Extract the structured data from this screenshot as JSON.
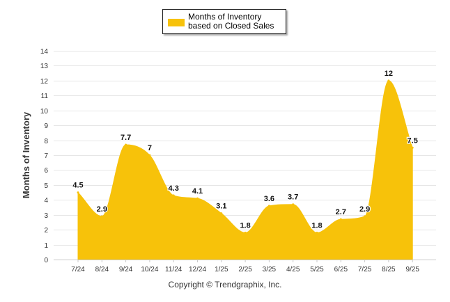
{
  "legend": {
    "label": "Months of Inventory based on Closed Sales"
  },
  "copyright": "Copyright © Trendgraphix, Inc.",
  "colors": {
    "fill": "#f7c20a",
    "grid": "#e6e6e6",
    "axis_text": "#333333"
  },
  "chart_data": {
    "type": "area",
    "title": "",
    "xlabel": "",
    "ylabel": "Months of Inventory",
    "categories": [
      "7/24",
      "8/24",
      "9/24",
      "10/24",
      "11/24",
      "12/24",
      "1/25",
      "2/25",
      "3/25",
      "4/25",
      "5/25",
      "6/25",
      "7/25",
      "8/25",
      "9/25"
    ],
    "series": [
      {
        "name": "Months of Inventory based on Closed Sales",
        "values": [
          4.5,
          2.9,
          7.7,
          7,
          4.3,
          4.1,
          3.1,
          1.8,
          3.6,
          3.7,
          1.8,
          2.7,
          2.9,
          12,
          7.5
        ]
      }
    ],
    "data_labels": [
      "4.5",
      "2.9",
      "7.7",
      "7",
      "4.3",
      "4.1",
      "3.1",
      "1.8",
      "3.6",
      "3.7",
      "1.8",
      "2.7",
      "2.9",
      "12",
      "7.5"
    ],
    "ylim": [
      0,
      14
    ],
    "yticks": [
      "0",
      "1",
      "2",
      "3",
      "4",
      "5",
      "6",
      "7",
      "8",
      "9",
      "10",
      "11",
      "12",
      "13",
      "14"
    ],
    "grid": true,
    "legend_position": "top-center"
  }
}
